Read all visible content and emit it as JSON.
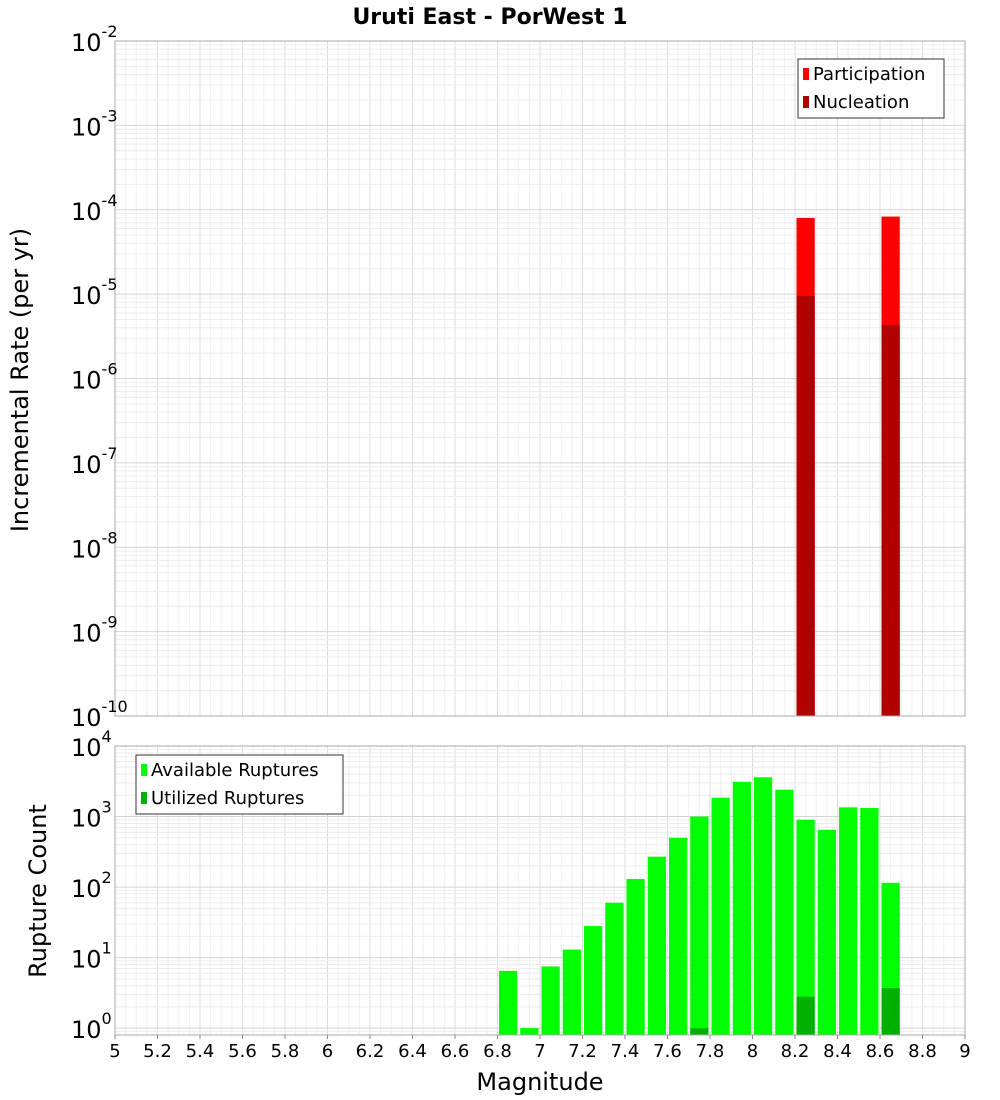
{
  "chart_data": [
    {
      "type": "bar",
      "title": "Uruti East - PorWest 1",
      "xlabel": "",
      "ylabel": "Incremental Rate (per yr)",
      "xlim": [
        5,
        9
      ],
      "y_scale": "log",
      "ylim": [
        1e-10,
        0.01
      ],
      "y_ticks": [
        {
          "base": "10",
          "exp": "-10",
          "value": 1e-10
        },
        {
          "base": "10",
          "exp": "-9",
          "value": 1e-09
        },
        {
          "base": "10",
          "exp": "-8",
          "value": 1e-08
        },
        {
          "base": "10",
          "exp": "-7",
          "value": 1e-07
        },
        {
          "base": "10",
          "exp": "-6",
          "value": 1e-06
        },
        {
          "base": "10",
          "exp": "-5",
          "value": 1e-05
        },
        {
          "base": "10",
          "exp": "-4",
          "value": 0.0001
        },
        {
          "base": "10",
          "exp": "-3",
          "value": 0.001
        },
        {
          "base": "10",
          "exp": "-2",
          "value": 0.01
        }
      ],
      "bin_width": 0.1,
      "legend": {
        "position": "top-right"
      },
      "series": [
        {
          "name": "Participation",
          "color": "#ff0000",
          "points": [
            {
              "x": 8.25,
              "y": 8e-05
            },
            {
              "x": 8.65,
              "y": 8.3e-05
            }
          ]
        },
        {
          "name": "Nucleation",
          "color": "#b00000",
          "points": [
            {
              "x": 8.25,
              "y": 9.5e-06
            },
            {
              "x": 8.65,
              "y": 4.3e-06
            }
          ]
        }
      ]
    },
    {
      "type": "bar",
      "title": "",
      "xlabel": "Magnitude",
      "ylabel": "Rupture Count",
      "xlim": [
        5,
        9
      ],
      "x_ticks": [
        "5",
        "5.2",
        "5.4",
        "5.6",
        "5.8",
        "6",
        "6.2",
        "6.4",
        "6.6",
        "6.8",
        "7",
        "7.2",
        "7.4",
        "7.6",
        "7.8",
        "8",
        "8.2",
        "8.4",
        "8.6",
        "8.8",
        "9"
      ],
      "y_scale": "log",
      "ylim": [
        0.8,
        10000
      ],
      "y_ticks": [
        {
          "base": "10",
          "exp": "0",
          "value": 1
        },
        {
          "base": "10",
          "exp": "1",
          "value": 10
        },
        {
          "base": "10",
          "exp": "2",
          "value": 100
        },
        {
          "base": "10",
          "exp": "3",
          "value": 1000
        },
        {
          "base": "10",
          "exp": "4",
          "value": 10000
        }
      ],
      "bin_width": 0.1,
      "legend": {
        "position": "top-left"
      },
      "series": [
        {
          "name": "Available Ruptures",
          "color": "#00ff00",
          "points": [
            {
              "x": 6.85,
              "y": 6.5
            },
            {
              "x": 6.95,
              "y": 1
            },
            {
              "x": 7.05,
              "y": 7.5
            },
            {
              "x": 7.15,
              "y": 13
            },
            {
              "x": 7.25,
              "y": 28
            },
            {
              "x": 7.35,
              "y": 60
            },
            {
              "x": 7.45,
              "y": 130
            },
            {
              "x": 7.55,
              "y": 270
            },
            {
              "x": 7.65,
              "y": 500
            },
            {
              "x": 7.75,
              "y": 1000
            },
            {
              "x": 7.85,
              "y": 1850
            },
            {
              "x": 7.95,
              "y": 3100
            },
            {
              "x": 8.05,
              "y": 3600
            },
            {
              "x": 8.15,
              "y": 2400
            },
            {
              "x": 8.25,
              "y": 900
            },
            {
              "x": 8.35,
              "y": 650
            },
            {
              "x": 8.45,
              "y": 1350
            },
            {
              "x": 8.55,
              "y": 1320
            },
            {
              "x": 8.65,
              "y": 115
            }
          ]
        },
        {
          "name": "Utilized Ruptures",
          "color": "#00b000",
          "points": [
            {
              "x": 7.75,
              "y": 1
            },
            {
              "x": 8.25,
              "y": 2.8
            },
            {
              "x": 8.65,
              "y": 3.7
            }
          ]
        }
      ]
    }
  ]
}
